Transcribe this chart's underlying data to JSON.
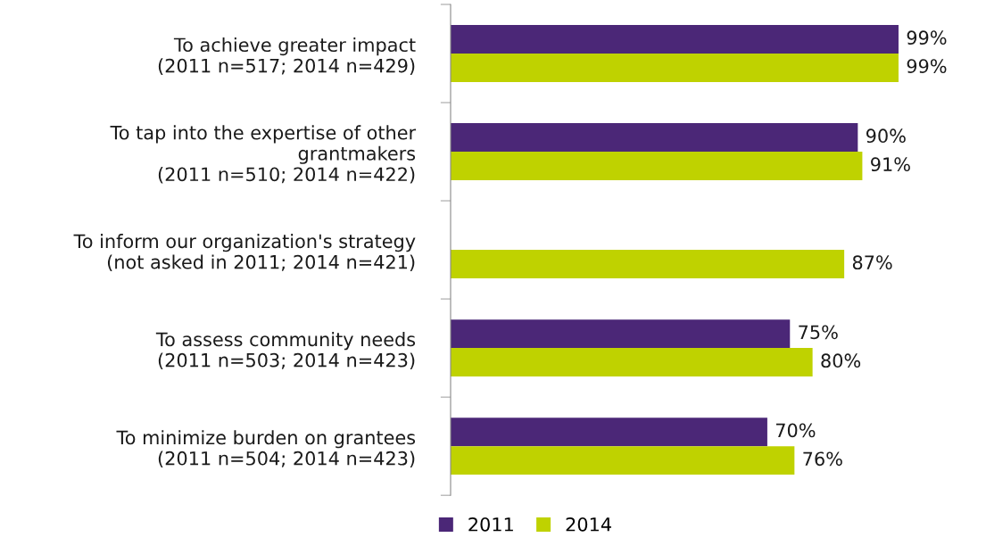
{
  "chart_data": {
    "type": "bar",
    "orientation": "horizontal",
    "categories": [
      "To achieve greater impact\n(2011 n=517; 2014 n=429)",
      "To tap into the expertise of other\ngrantmakers\n(2011 n=510; 2014 n=422)",
      "To inform our organization's strategy\n(not asked in 2011; 2014 n=421)",
      "To assess community needs\n(2011 n=503; 2014 n=423)",
      "To minimize burden on grantees\n(2011 n=504; 2014 n=423)"
    ],
    "series": [
      {
        "name": "2011",
        "color": "#4b2777",
        "values": [
          99,
          90,
          null,
          75,
          70
        ],
        "value_labels": [
          "99%",
          "90%",
          null,
          "75%",
          "70%"
        ]
      },
      {
        "name": "2014",
        "color": "#bfd200",
        "values": [
          99,
          91,
          87,
          80,
          76
        ],
        "value_labels": [
          "99%",
          "91%",
          "87%",
          "80%",
          "76%"
        ]
      }
    ],
    "tick_labels": "y",
    "grid": false,
    "legend": "bottom"
  }
}
